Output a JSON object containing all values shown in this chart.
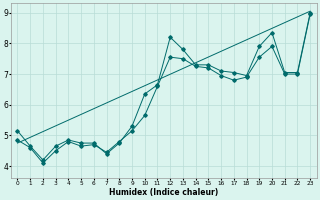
{
  "title": "",
  "xlabel": "Humidex (Indice chaleur)",
  "xlim": [
    -0.5,
    23.5
  ],
  "ylim": [
    3.6,
    9.3
  ],
  "xticks": [
    0,
    1,
    2,
    3,
    4,
    5,
    6,
    7,
    8,
    9,
    10,
    11,
    12,
    13,
    14,
    15,
    16,
    17,
    18,
    19,
    20,
    21,
    22,
    23
  ],
  "yticks": [
    4,
    5,
    6,
    7,
    8,
    9
  ],
  "bg_color": "#daf4ee",
  "grid_color": "#b8ddd6",
  "line_color": "#006b6b",
  "line1_x": [
    0,
    1,
    2,
    3,
    4,
    5,
    6,
    7,
    8,
    9,
    10,
    11,
    12,
    13,
    14,
    15,
    16,
    17,
    18,
    19,
    20,
    21,
    22,
    23
  ],
  "line1_y": [
    5.15,
    4.65,
    4.2,
    4.65,
    4.85,
    4.75,
    4.75,
    4.4,
    4.75,
    5.3,
    6.35,
    6.65,
    8.2,
    7.8,
    7.3,
    7.3,
    7.1,
    7.05,
    6.95,
    7.9,
    8.35,
    7.05,
    7.05,
    9.0
  ],
  "line2_x": [
    0,
    1,
    2,
    3,
    4,
    5,
    6,
    7,
    8,
    9,
    10,
    11,
    12,
    13,
    14,
    15,
    16,
    17,
    18,
    19,
    20,
    21,
    22,
    23
  ],
  "line2_y": [
    4.85,
    4.6,
    4.1,
    4.5,
    4.8,
    4.65,
    4.7,
    4.45,
    4.8,
    5.15,
    5.65,
    6.6,
    7.55,
    7.5,
    7.25,
    7.2,
    6.95,
    6.8,
    6.9,
    7.55,
    7.9,
    7.0,
    7.0,
    8.95
  ],
  "line3_x": [
    0,
    23
  ],
  "line3_y": [
    4.75,
    9.05
  ]
}
